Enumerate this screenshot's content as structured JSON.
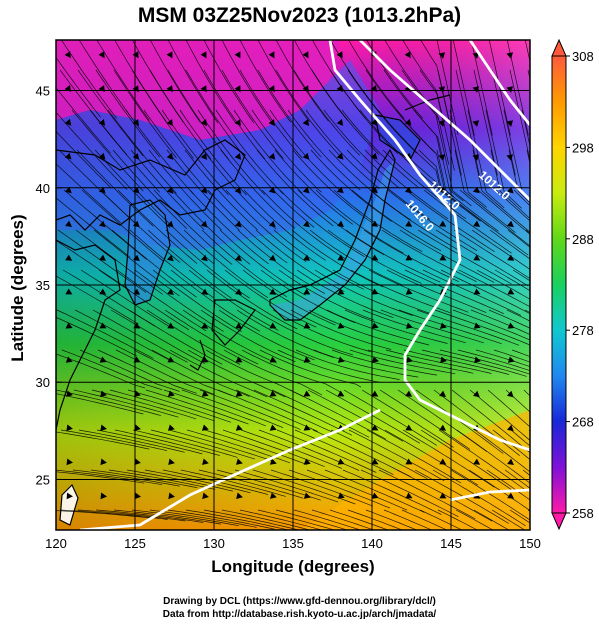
{
  "title": "MSM 03Z25Nov2023 (1013.2hPa)",
  "xlabel": "Longitude (degrees)",
  "ylabel": "Latitude  (degrees)",
  "credit_line1": "Drawing by DCL (https://www.gfd-dennou.org/library/dcl/)",
  "credit_line2": "Data from http://database.rish.kyoto-u.ac.jp/arch/jmadata/",
  "map_data": {
    "lon_range": [
      120,
      150
    ],
    "lat_range": [
      22.4,
      47.6
    ],
    "x_ticks": [
      120,
      125,
      130,
      135,
      140,
      145,
      150
    ],
    "y_ticks": [
      25,
      30,
      35,
      40,
      45
    ],
    "grid_lon": [
      125,
      130,
      135,
      140,
      145
    ],
    "grid_lat": [
      25,
      30,
      35,
      40,
      45
    ],
    "colorbar": {
      "min": 258,
      "max": 308,
      "tick_labels": [
        "308",
        "298",
        "288",
        "278",
        "268",
        "258"
      ],
      "tick_values": [
        308,
        298,
        288,
        278,
        268,
        258
      ],
      "colors": [
        "#ff5a3c",
        "#ff9a00",
        "#ffd400",
        "#d8ef10",
        "#8fe000",
        "#3ad020",
        "#1ad07a",
        "#10c8d0",
        "#2088f0",
        "#1828d8",
        "#6010d8",
        "#c010d0",
        "#ff1aa8"
      ]
    },
    "isobar_labels": [
      "1012.0",
      "1012.0",
      "1016.0"
    ],
    "colors": {
      "isobar": "#ffffff",
      "streamline": "#000000",
      "coast": "#000000"
    }
  }
}
